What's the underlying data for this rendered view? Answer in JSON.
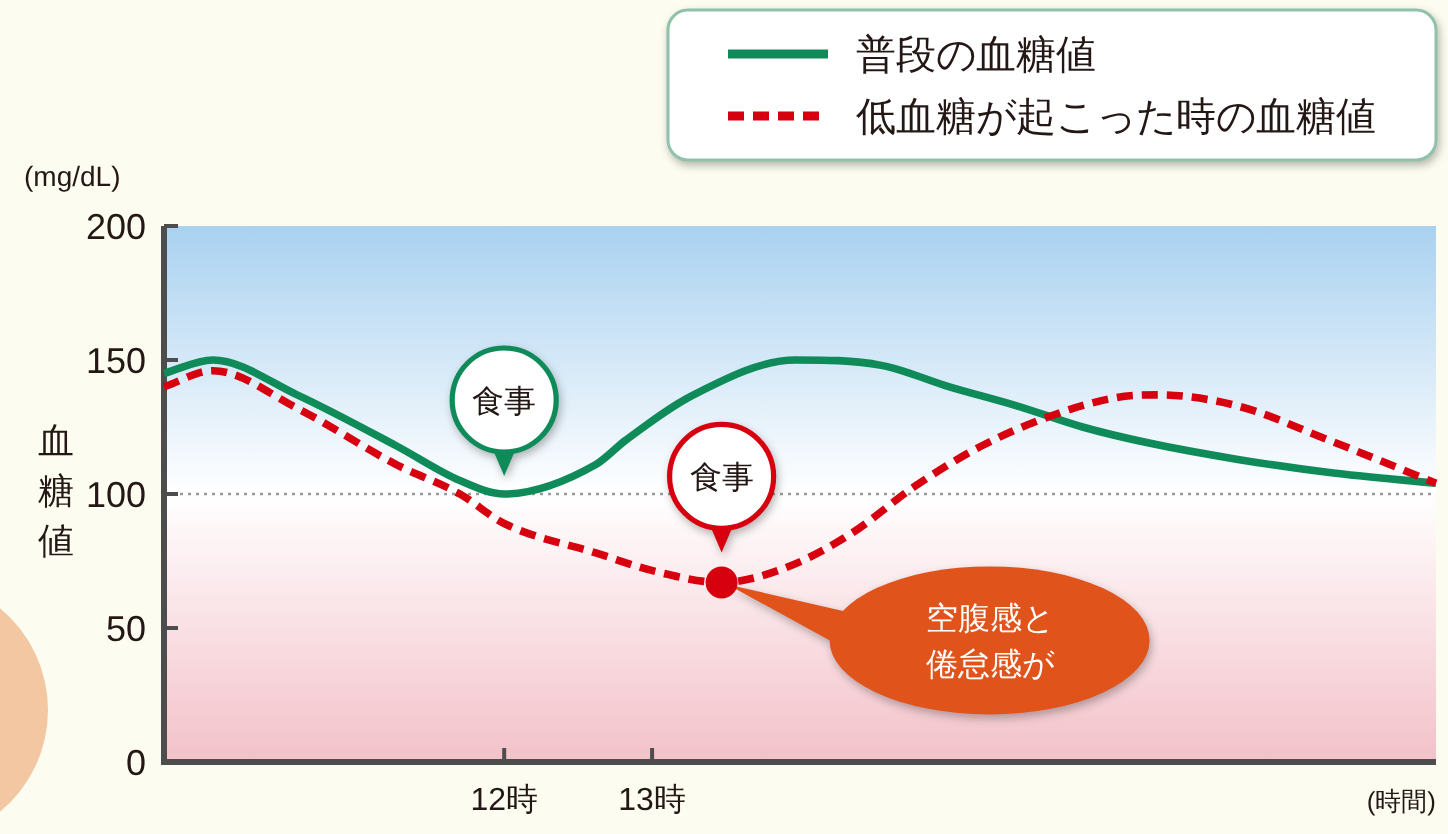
{
  "chart_data": {
    "type": "line",
    "ylabel": "血糖値",
    "xlabel": "(時間)",
    "xlim": [
      9.7,
      18.3
    ],
    "xticks": [
      {
        "value": 12,
        "label": "12時"
      },
      {
        "value": 13,
        "label": "13時"
      }
    ],
    "ylim": [
      0,
      200
    ],
    "yticks": [
      0,
      50,
      100,
      150,
      200
    ],
    "legend": "top right",
    "ref_lines": [
      {
        "axis": "y",
        "value": 100,
        "color": "#9a9a9a",
        "line_style": "dotted"
      }
    ],
    "bands": [
      {
        "axis": "y",
        "from": 100,
        "to": 200,
        "color": "#a9d1f0"
      },
      {
        "axis": "y",
        "from": 0,
        "to": 100,
        "color": "#f3c1c9"
      }
    ],
    "series": [
      {
        "name": "普段の血糖値",
        "color": "#0f8b5a",
        "line_style": "solid",
        "x": [
          9.7,
          10.03,
          10.6,
          11.27,
          11.7,
          12.0,
          12.62,
          12.82,
          13.28,
          13.97,
          14.55,
          15.01,
          15.46,
          15.91,
          16.36,
          16.95,
          17.58,
          18.3
        ],
        "values": [
          145,
          150,
          137,
          118,
          105,
          100,
          111,
          120,
          137,
          150,
          148,
          140,
          133,
          125,
          119,
          113,
          108,
          104
        ]
      },
      {
        "name": "低血糖が起こった時の血糖値",
        "color": "#d7000f",
        "line_style": "dashed",
        "x": [
          9.7,
          10.03,
          10.6,
          11.27,
          11.7,
          12.0,
          12.62,
          13.03,
          13.47,
          13.88,
          14.34,
          14.78,
          15.23,
          15.69,
          16.14,
          16.41,
          16.95,
          17.58,
          18.3
        ],
        "values": [
          140,
          146,
          132,
          111,
          100,
          89,
          78,
          71,
          67,
          72,
          85,
          103,
          118,
          129,
          136,
          137,
          133,
          120,
          104
        ]
      },
      {
        "type": "scatter",
        "color": "#d7000f",
        "marker": "circle",
        "x": [
          13.47
        ],
        "values": [
          67
        ]
      }
    ],
    "annotations": [
      "(mg/dL)",
      {
        "text": "食事",
        "x": 12,
        "y": 100
      },
      {
        "text": "食事",
        "x": 13.47,
        "y": 67
      },
      "空腹感と倦怠感が"
    ]
  }
}
